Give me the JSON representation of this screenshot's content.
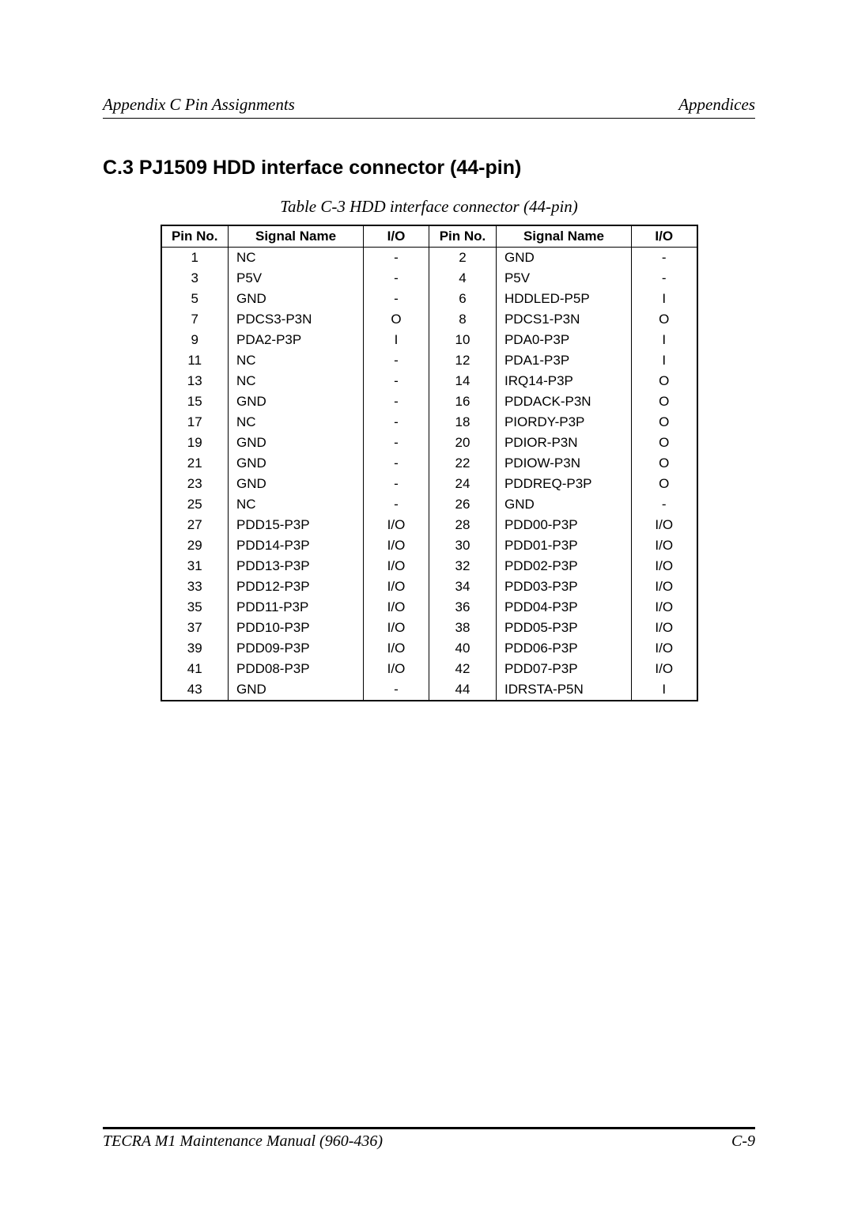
{
  "header": {
    "left": "Appendix C  Pin Assignments",
    "right": "Appendices"
  },
  "section": {
    "title": "C.3   PJ1509   HDD interface connector (44-pin)"
  },
  "table": {
    "caption": "Table  C-3   HDD interface connector (44-pin)",
    "columns": [
      "Pin No.",
      "Signal Name",
      "I/O",
      "Pin No.",
      "Signal Name",
      "I/O"
    ],
    "rows": [
      [
        "1",
        "NC",
        "-",
        "2",
        "GND",
        "-"
      ],
      [
        "3",
        "P5V",
        "-",
        "4",
        "P5V",
        "-"
      ],
      [
        "5",
        "GND",
        "-",
        "6",
        "HDDLED-P5P",
        "I"
      ],
      [
        "7",
        "PDCS3-P3N",
        "O",
        "8",
        "PDCS1-P3N",
        "O"
      ],
      [
        "9",
        "PDA2-P3P",
        "I",
        "10",
        "PDA0-P3P",
        "I"
      ],
      [
        "11",
        "NC",
        "-",
        "12",
        "PDA1-P3P",
        "I"
      ],
      [
        "13",
        "NC",
        "-",
        "14",
        "IRQ14-P3P",
        "O"
      ],
      [
        "15",
        "GND",
        "-",
        "16",
        "PDDACK-P3N",
        "O"
      ],
      [
        "17",
        "NC",
        "-",
        "18",
        "PIORDY-P3P",
        "O"
      ],
      [
        "19",
        "GND",
        "-",
        "20",
        "PDIOR-P3N",
        "O"
      ],
      [
        "21",
        "GND",
        "-",
        "22",
        "PDIOW-P3N",
        "O"
      ],
      [
        "23",
        "GND",
        "-",
        "24",
        "PDDREQ-P3P",
        "O"
      ],
      [
        "25",
        "NC",
        "-",
        "26",
        "GND",
        "-"
      ],
      [
        "27",
        "PDD15-P3P",
        "I/O",
        "28",
        "PDD00-P3P",
        "I/O"
      ],
      [
        "29",
        "PDD14-P3P",
        "I/O",
        "30",
        "PDD01-P3P",
        "I/O"
      ],
      [
        "31",
        "PDD13-P3P",
        "I/O",
        "32",
        "PDD02-P3P",
        "I/O"
      ],
      [
        "33",
        "PDD12-P3P",
        "I/O",
        "34",
        "PDD03-P3P",
        "I/O"
      ],
      [
        "35",
        "PDD11-P3P",
        "I/O",
        "36",
        "PDD04-P3P",
        "I/O"
      ],
      [
        "37",
        "PDD10-P3P",
        "I/O",
        "38",
        "PDD05-P3P",
        "I/O"
      ],
      [
        "39",
        "PDD09-P3P",
        "I/O",
        "40",
        "PDD06-P3P",
        "I/O"
      ],
      [
        "41",
        "PDD08-P3P",
        "I/O",
        "42",
        "PDD07-P3P",
        "I/O"
      ],
      [
        "43",
        "GND",
        "-",
        "44",
        "IDRSTA-P5N",
        "I"
      ]
    ]
  },
  "footer": {
    "left": "TECRA M1 Maintenance Manual (960-436)",
    "right": "C-9"
  }
}
